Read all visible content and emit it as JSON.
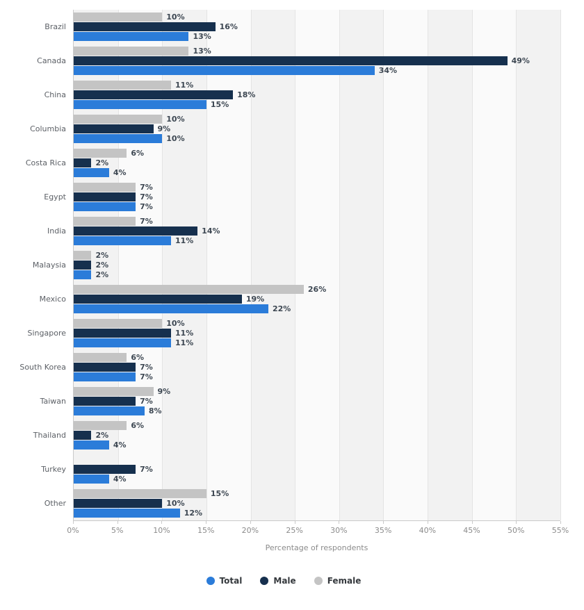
{
  "chart_data": {
    "type": "bar",
    "orientation": "horizontal",
    "title": "",
    "xlabel": "Percentage of respondents",
    "ylabel": "",
    "xlim": [
      0,
      55
    ],
    "x_ticks": [
      "0%",
      "5%",
      "10%",
      "15%",
      "20%",
      "25%",
      "30%",
      "35%",
      "40%",
      "45%",
      "50%",
      "55%"
    ],
    "value_suffix": "%",
    "grid": true,
    "legend_position": "bottom",
    "display_order": [
      "Female",
      "Male",
      "Total"
    ],
    "categories": [
      "Brazil",
      "Canada",
      "China",
      "Columbia",
      "Costa Rica",
      "Egypt",
      "India",
      "Malaysia",
      "Mexico",
      "Singapore",
      "South Korea",
      "Taiwan",
      "Thailand",
      "Turkey",
      "Other"
    ],
    "series": [
      {
        "name": "Total",
        "color": "#2b7cd9",
        "values": [
          13,
          34,
          15,
          10,
          4,
          7,
          11,
          2,
          22,
          11,
          7,
          8,
          4,
          4,
          12
        ]
      },
      {
        "name": "Male",
        "color": "#16304e",
        "values": [
          16,
          49,
          18,
          9,
          2,
          7,
          14,
          2,
          19,
          11,
          7,
          7,
          2,
          7,
          10
        ]
      },
      {
        "name": "Female",
        "color": "#c4c4c4",
        "values": [
          10,
          13,
          11,
          10,
          6,
          7,
          7,
          2,
          26,
          10,
          6,
          9,
          6,
          null,
          15
        ]
      }
    ]
  },
  "colors": {
    "band_dark": "#f2f2f2",
    "band_light": "#fafafa",
    "axis": "#c9c9c9",
    "value_label": "#3d4752"
  }
}
